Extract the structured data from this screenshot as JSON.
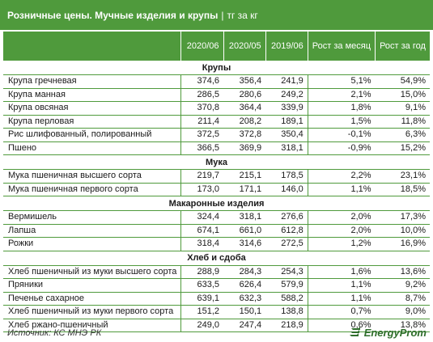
{
  "header": {
    "title": "Розничные цены. Мучные изделия и крупы",
    "separator": "|",
    "unit": "тг за кг"
  },
  "columns": [
    "",
    "2020/06",
    "2020/05",
    "2019/06",
    "Рост за месяц",
    "Рост за год"
  ],
  "sections": [
    {
      "title": "Крупы",
      "rows": [
        [
          "Крупа гречневая",
          "374,6",
          "356,4",
          "241,9",
          "5,1%",
          "54,9%"
        ],
        [
          "Крупа манная",
          "286,5",
          "280,6",
          "249,2",
          "2,1%",
          "15,0%"
        ],
        [
          "Крупа овсяная",
          "370,8",
          "364,4",
          "339,9",
          "1,8%",
          "9,1%"
        ],
        [
          "Крупа перловая",
          "211,4",
          "208,2",
          "189,1",
          "1,5%",
          "11,8%"
        ],
        [
          "Рис шлифованный, полированный",
          "372,5",
          "372,8",
          "350,4",
          "-0,1%",
          "6,3%"
        ],
        [
          "Пшено",
          "366,5",
          "369,9",
          "318,1",
          "-0,9%",
          "15,2%"
        ]
      ]
    },
    {
      "title": "Мука",
      "rows": [
        [
          "Мука пшеничная высшего сорта",
          "219,7",
          "215,1",
          "178,5",
          "2,2%",
          "23,1%"
        ],
        [
          "Мука пшеничная первого сорта",
          "173,0",
          "171,1",
          "146,0",
          "1,1%",
          "18,5%"
        ]
      ]
    },
    {
      "title": "Макаронные изделия",
      "rows": [
        [
          "Вермишель",
          "324,4",
          "318,1",
          "276,6",
          "2,0%",
          "17,3%"
        ],
        [
          "Лапша",
          "674,1",
          "661,0",
          "612,8",
          "2,0%",
          "10,0%"
        ],
        [
          "Рожки",
          "318,4",
          "314,6",
          "272,5",
          "1,2%",
          "16,9%"
        ]
      ]
    },
    {
      "title": "Хлеб и сдоба",
      "rows": [
        [
          "Хлеб пшеничный из муки высшего сорта",
          "288,9",
          "284,3",
          "254,3",
          "1,6%",
          "13,6%"
        ],
        [
          "Пряники",
          "633,5",
          "626,4",
          "579,9",
          "1,1%",
          "9,2%"
        ],
        [
          "Печенье сахарное",
          "639,1",
          "632,3",
          "588,2",
          "1,1%",
          "8,7%"
        ],
        [
          "Хлеб пшеничный из муки первого сорта",
          "151,2",
          "150,1",
          "138,8",
          "0,7%",
          "9,0%"
        ],
        [
          "Хлеб ржано-пшеничный",
          "249,0",
          "247,4",
          "218,9",
          "0,6%",
          "13,8%"
        ]
      ]
    }
  ],
  "footer": {
    "source": "Источник: КС МНЭ РК",
    "logo_text": "EnergyProm",
    "logo_icon": "energyprom-logo-icon"
  },
  "colors": {
    "accent": "#4f9a3c",
    "logo": "#2f6e2c"
  }
}
